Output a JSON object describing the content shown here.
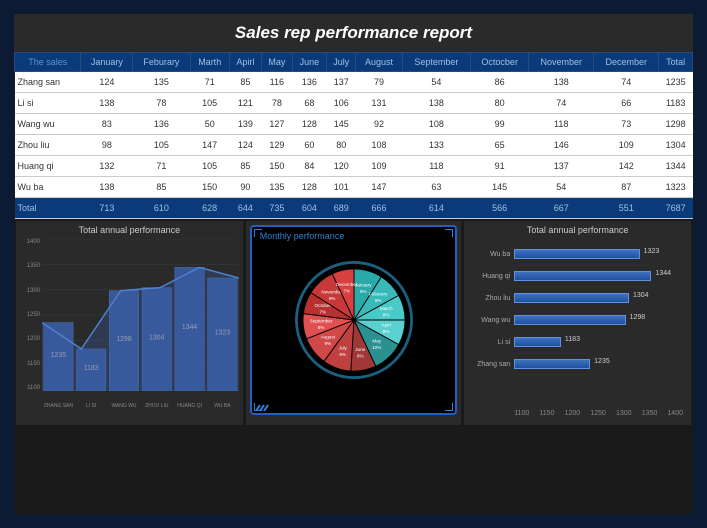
{
  "title": "Sales rep performance report",
  "table": {
    "headers": [
      "The sales",
      "January",
      "Feburary",
      "Marth",
      "Apirl",
      "May",
      "June",
      "July",
      "August",
      "September",
      "Octocber",
      "November",
      "December",
      "Total"
    ],
    "rows": [
      {
        "name": "Zhang san",
        "vals": [
          124,
          135,
          71,
          85,
          116,
          136,
          137,
          79,
          54,
          86,
          138,
          74
        ],
        "total": 1235
      },
      {
        "name": "Li si",
        "vals": [
          138,
          78,
          105,
          121,
          78,
          68,
          106,
          131,
          138,
          80,
          74,
          66
        ],
        "total": 1183
      },
      {
        "name": "Wang wu",
        "vals": [
          83,
          136,
          50,
          139,
          127,
          128,
          145,
          92,
          108,
          99,
          118,
          73
        ],
        "total": 1298
      },
      {
        "name": "Zhou liu",
        "vals": [
          98,
          105,
          147,
          124,
          129,
          60,
          80,
          108,
          133,
          65,
          146,
          109
        ],
        "total": 1304
      },
      {
        "name": "Huang qi",
        "vals": [
          132,
          71,
          105,
          85,
          150,
          84,
          120,
          109,
          118,
          91,
          137,
          142
        ],
        "total": 1344
      },
      {
        "name": "Wu ba",
        "vals": [
          138,
          85,
          150,
          90,
          135,
          128,
          101,
          147,
          63,
          145,
          54,
          87
        ],
        "total": 1323
      }
    ],
    "totals": [
      713,
      610,
      628,
      644,
      735,
      604,
      689,
      666,
      614,
      566,
      667,
      551,
      7687
    ],
    "total_label": "Total"
  },
  "charts": {
    "area": {
      "title": "Total annual performance",
      "categories": [
        "ZHANG SAN",
        "LI SI",
        "WANG WU",
        "ZHOU LIU",
        "HUANG QI",
        "WU BA"
      ],
      "values": [
        1235,
        1183,
        1298,
        1304,
        1344,
        1323
      ],
      "ylim": [
        1100,
        1400
      ],
      "ytick_step": 50,
      "fill_color": "#3a5fa8",
      "line_color": "#5080d0",
      "grid_color": "#444",
      "label_color": "#cccccc",
      "label_fontsize": 6
    },
    "pie": {
      "title": "Monthly performance",
      "slices": [
        {
          "label": "January",
          "pct": 9,
          "color": "#2aa9a9"
        },
        {
          "label": "Feburary",
          "pct": 8,
          "color": "#3ab9b9"
        },
        {
          "label": "March",
          "pct": 8,
          "color": "#4ac9c9"
        },
        {
          "label": "Apirl",
          "pct": 8,
          "color": "#5ad0d0"
        },
        {
          "label": "May",
          "pct": 10,
          "color": "#2a9090"
        },
        {
          "label": "June",
          "pct": 8,
          "color": "#a03838"
        },
        {
          "label": "July",
          "pct": 9,
          "color": "#c04040"
        },
        {
          "label": "August",
          "pct": 9,
          "color": "#d04848"
        },
        {
          "label": "September",
          "pct": 8,
          "color": "#e05050"
        },
        {
          "label": "October",
          "pct": 7,
          "color": "#b83030"
        },
        {
          "label": "November",
          "pct": 9,
          "color": "#c83838"
        },
        {
          "label": "December",
          "pct": 7,
          "color": "#d84040"
        }
      ],
      "border_color": "#000",
      "stroke_width": 1.5,
      "radius": 55
    },
    "bar": {
      "title": "Total annual performance",
      "items": [
        {
          "label": "Wu ba",
          "value": 1323
        },
        {
          "label": "Huang qi",
          "value": 1344
        },
        {
          "label": "Zhou liu",
          "value": 1304
        },
        {
          "label": "Wang wu",
          "value": 1298
        },
        {
          "label": "Li si",
          "value": 1183
        },
        {
          "label": "Zhang san",
          "value": 1235
        }
      ],
      "xlim": [
        1100,
        1400
      ],
      "xtick_step": 50,
      "bar_color": "#3a5fa8",
      "bar_border": "#6090e0",
      "grid_color": "#444"
    }
  }
}
